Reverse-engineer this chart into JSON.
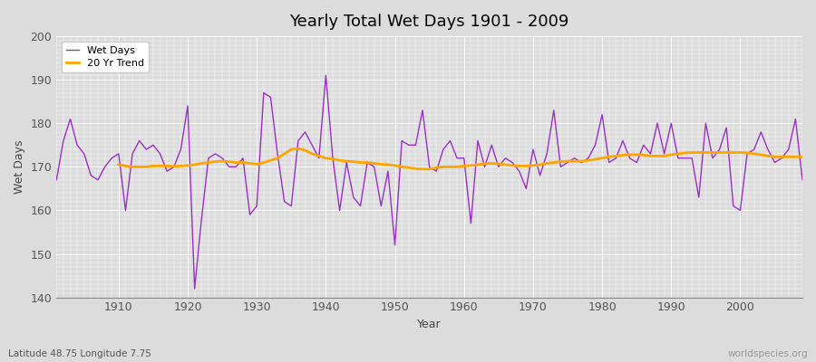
{
  "title": "Yearly Total Wet Days 1901 - 2009",
  "xlabel": "Year",
  "ylabel": "Wet Days",
  "subtitle": "Latitude 48.75 Longitude 7.75",
  "watermark": "worldspecies.org",
  "ylim": [
    140,
    200
  ],
  "xlim": [
    1901,
    2009
  ],
  "yticks": [
    140,
    150,
    160,
    170,
    180,
    190,
    200
  ],
  "xticks": [
    1910,
    1920,
    1930,
    1940,
    1950,
    1960,
    1970,
    1980,
    1990,
    2000
  ],
  "bg_color": "#dcdcdc",
  "plot_bg_color": "#dcdcdc",
  "grid_color": "#ffffff",
  "wet_days_color": "#9b30c8",
  "trend_color": "#ffa500",
  "legend_wet_days": "Wet Days",
  "legend_trend": "20 Yr Trend",
  "years": [
    1901,
    1902,
    1903,
    1904,
    1905,
    1906,
    1907,
    1908,
    1909,
    1910,
    1911,
    1912,
    1913,
    1914,
    1915,
    1916,
    1917,
    1918,
    1919,
    1920,
    1921,
    1922,
    1923,
    1924,
    1925,
    1926,
    1927,
    1928,
    1929,
    1930,
    1931,
    1932,
    1933,
    1934,
    1935,
    1936,
    1937,
    1938,
    1939,
    1940,
    1941,
    1942,
    1943,
    1944,
    1945,
    1946,
    1947,
    1948,
    1949,
    1950,
    1951,
    1952,
    1953,
    1954,
    1955,
    1956,
    1957,
    1958,
    1959,
    1960,
    1961,
    1962,
    1963,
    1964,
    1965,
    1966,
    1967,
    1968,
    1969,
    1970,
    1971,
    1972,
    1973,
    1974,
    1975,
    1976,
    1977,
    1978,
    1979,
    1980,
    1981,
    1982,
    1983,
    1984,
    1985,
    1986,
    1987,
    1988,
    1989,
    1990,
    1991,
    1992,
    1993,
    1994,
    1995,
    1996,
    1997,
    1998,
    1999,
    2000,
    2001,
    2002,
    2003,
    2004,
    2005,
    2006,
    2007,
    2008,
    2009
  ],
  "wet_days": [
    167,
    176,
    181,
    175,
    173,
    168,
    167,
    170,
    172,
    173,
    160,
    173,
    176,
    174,
    175,
    173,
    169,
    170,
    174,
    184,
    142,
    158,
    172,
    173,
    172,
    170,
    170,
    172,
    159,
    161,
    187,
    186,
    173,
    162,
    161,
    176,
    178,
    175,
    172,
    191,
    172,
    160,
    171,
    163,
    161,
    171,
    170,
    161,
    169,
    152,
    176,
    175,
    175,
    183,
    170,
    169,
    174,
    176,
    172,
    172,
    157,
    176,
    170,
    175,
    170,
    172,
    171,
    169,
    165,
    174,
    168,
    173,
    183,
    170,
    171,
    172,
    171,
    172,
    175,
    182,
    171,
    172,
    176,
    172,
    171,
    175,
    173,
    180,
    173,
    180,
    172,
    172,
    172,
    163,
    180,
    172,
    174,
    179,
    161,
    160,
    173,
    174,
    178,
    174,
    171,
    172,
    174,
    181,
    167
  ],
  "trend_years": [
    1901,
    1902,
    1903,
    1904,
    1905,
    1906,
    1907,
    1908,
    1909,
    1910,
    1911,
    1912,
    1913,
    1914,
    1915,
    1916,
    1917,
    1918,
    1919,
    1920,
    1921,
    1922,
    1923,
    1924,
    1925,
    1926,
    1927,
    1928,
    1929,
    1930,
    1931,
    1932,
    1933,
    1934,
    1935,
    1936,
    1937,
    1938,
    1939,
    1940,
    1941,
    1942,
    1943,
    1944,
    1945,
    1946,
    1947,
    1948,
    1949,
    1950,
    1951,
    1952,
    1953,
    1954,
    1955,
    1956,
    1957,
    1958,
    1959,
    1960,
    1961,
    1962,
    1963,
    1964,
    1965,
    1966,
    1967,
    1968,
    1969,
    1970,
    1971,
    1972,
    1973,
    1974,
    1975,
    1976,
    1977,
    1978,
    1979,
    1980,
    1981,
    1982,
    1983,
    1984,
    1985,
    1986,
    1987,
    1988,
    1989,
    1990,
    1991,
    1992,
    1993,
    1994,
    1995,
    1996,
    1997,
    1998,
    1999,
    2000,
    2001,
    2002,
    2003,
    2004,
    2005,
    2006,
    2007,
    2008,
    2009
  ],
  "trend_values": [
    null,
    null,
    null,
    null,
    null,
    null,
    null,
    null,
    null,
    170.5,
    170.2,
    170.0,
    170.0,
    170.0,
    170.2,
    170.2,
    170.2,
    170.1,
    170.2,
    170.3,
    170.5,
    170.8,
    171.0,
    171.2,
    171.3,
    171.2,
    171.0,
    171.0,
    170.8,
    170.6,
    171.0,
    171.5,
    172.0,
    173.0,
    174.0,
    174.2,
    173.8,
    173.0,
    172.5,
    172.0,
    171.8,
    171.5,
    171.3,
    171.2,
    171.0,
    171.0,
    170.8,
    170.6,
    170.5,
    170.3,
    170.0,
    169.8,
    169.6,
    169.5,
    169.5,
    169.8,
    170.0,
    170.0,
    170.0,
    170.2,
    170.3,
    170.5,
    170.7,
    170.8,
    170.7,
    170.5,
    170.3,
    170.2,
    170.2,
    170.3,
    170.5,
    170.8,
    171.0,
    171.2,
    171.3,
    171.3,
    171.3,
    171.5,
    171.7,
    172.0,
    172.3,
    172.5,
    172.7,
    172.8,
    172.8,
    172.7,
    172.5,
    172.5,
    172.5,
    172.8,
    173.0,
    173.2,
    173.3,
    173.3,
    173.3,
    173.3,
    173.3,
    173.3,
    173.3,
    173.3,
    173.2,
    173.0,
    172.8,
    172.5,
    172.3,
    172.3,
    172.3,
    172.3,
    172.3
  ]
}
